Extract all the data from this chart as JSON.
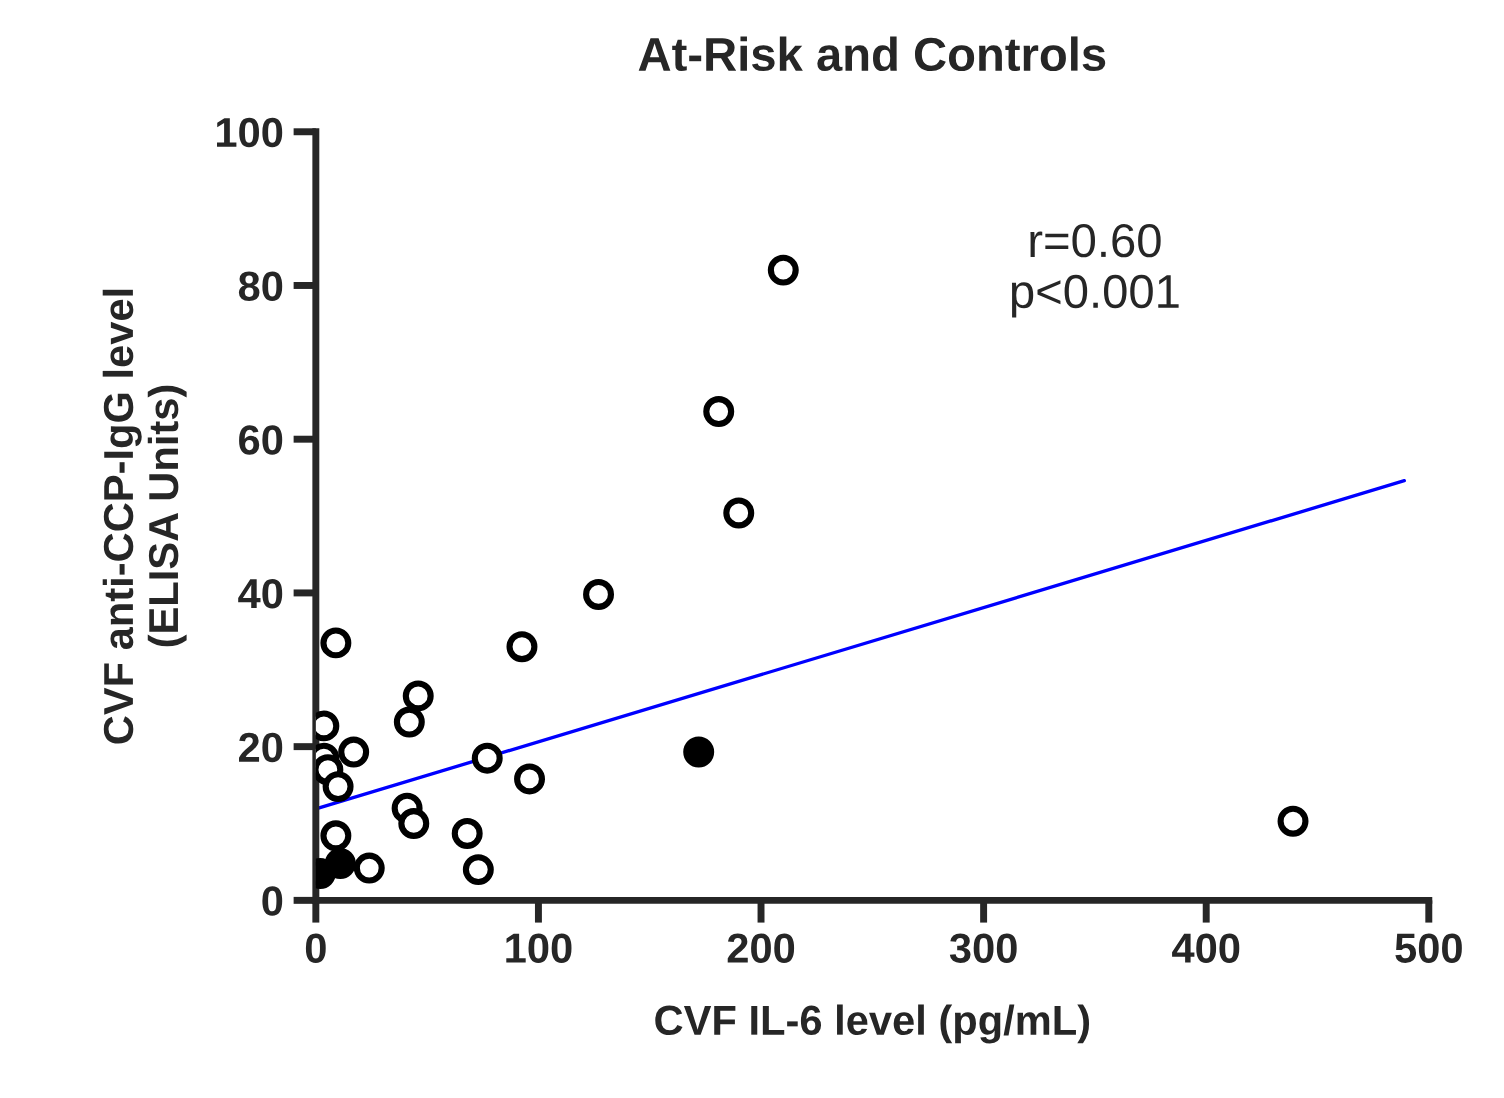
{
  "chart_data": {
    "type": "scatter",
    "title": "At-Risk and Controls",
    "xlabel": "CVF IL-6 level (pg/mL)",
    "ylabel": "CVF anti-CCP-IgG level\n(ELISA Units)",
    "xlim": [
      0,
      500
    ],
    "xticks": [
      0,
      100,
      200,
      300,
      400,
      500
    ],
    "ylim": [
      0,
      100
    ],
    "yticks": [
      0,
      20,
      40,
      60,
      80,
      100
    ],
    "grid": false,
    "legend": false,
    "annotations": [
      "r=0.60\np<0.001"
    ],
    "series": [
      {
        "color": "#ffffff",
        "marker": "circle",
        "x": [
          210,
          181,
          190,
          127,
          92.6,
          9,
          46,
          42,
          3.6,
          17,
          3.6,
          5.4,
          10,
          77,
          96,
          41,
          44,
          68,
          73,
          9,
          24,
          439
        ],
        "values": [
          82,
          63.6,
          50.4,
          39.8,
          33,
          33.5,
          26.6,
          23.2,
          22.7,
          19.3,
          18.5,
          17,
          14.8,
          18.5,
          15.8,
          12,
          10,
          8.7,
          4,
          8.4,
          4.2,
          10.3
        ]
      },
      {
        "color": "#000000",
        "marker": "circle",
        "x": [
          172,
          2,
          11
        ],
        "values": [
          19.3,
          3.5,
          4.8
        ]
      },
      {
        "type": "line",
        "marker": "none",
        "color": "#0000ff",
        "x": [
          0,
          489
        ],
        "values": [
          11.9,
          54.6
        ]
      }
    ]
  }
}
